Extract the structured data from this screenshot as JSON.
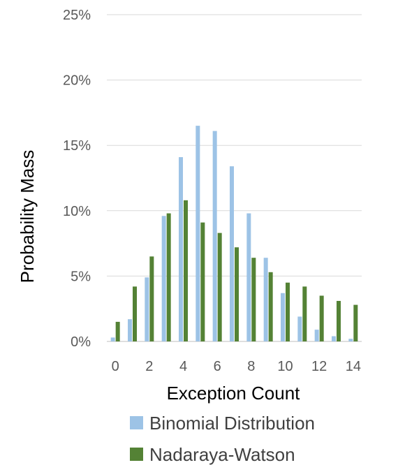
{
  "chart_data": {
    "type": "bar",
    "title": "",
    "xlabel": "Exception Count",
    "ylabel": "Probability Mass",
    "ylim": [
      0,
      25
    ],
    "y_ticks": [
      "0%",
      "5%",
      "10%",
      "15%",
      "20%",
      "25%"
    ],
    "x_tick_labels": [
      "0",
      "2",
      "4",
      "6",
      "8",
      "10",
      "12",
      "14"
    ],
    "grid": true,
    "legend_position": "bottom",
    "categories": [
      0,
      1,
      2,
      3,
      4,
      5,
      6,
      7,
      8,
      9,
      10,
      11,
      12,
      13,
      14
    ],
    "series": [
      {
        "name": "Binomial Distribution",
        "color": "#9dc3e6",
        "values": [
          0.3,
          1.7,
          4.9,
          9.6,
          14.1,
          16.5,
          16.1,
          13.4,
          9.8,
          6.4,
          3.7,
          1.9,
          0.9,
          0.4,
          0.2
        ]
      },
      {
        "name": "Nadaraya-Watson",
        "color": "#548235",
        "values": [
          1.5,
          4.2,
          6.5,
          9.8,
          10.8,
          9.1,
          8.3,
          7.2,
          6.4,
          5.3,
          4.5,
          4.2,
          3.5,
          3.1,
          2.8
        ]
      }
    ]
  }
}
